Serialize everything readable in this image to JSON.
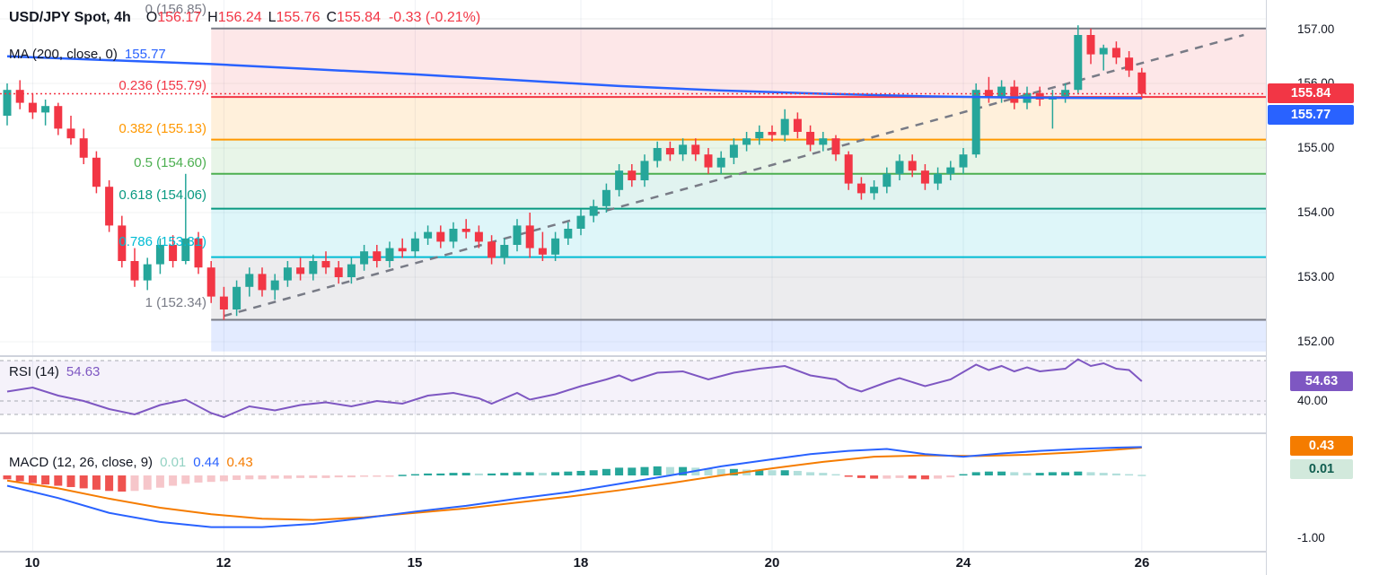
{
  "ui": {
    "header": {
      "symbol": "USD/JPY Spot, 4h",
      "o_label": "O",
      "o": "156.17",
      "h_label": "H",
      "h": "156.24",
      "l_label": "L",
      "l": "155.76",
      "c_label": "C",
      "c": "155.84",
      "change": "-0.33 (-0.21%)"
    },
    "ma": {
      "label": "MA (200, close, 0)",
      "value": "155.77"
    },
    "fib_labels": {
      "f0": "0 (156.85)",
      "f236": "0.236 (155.79)",
      "f382": "0.382 (155.13)",
      "f5": "0.5 (154.60)",
      "f618": "0.618 (154.06)",
      "f786": "0.786 (153.31)",
      "f1": "1 (152.34)"
    },
    "price_axis": {
      "p157": "157.00",
      "p156": "156.00",
      "p155": "155.00",
      "p154": "154.00",
      "p153": "153.00",
      "p152": "152.00",
      "last": "155.84",
      "ma": "155.77"
    },
    "rsi": {
      "label": "RSI (14)",
      "value": "54.63",
      "badge": "54.63",
      "level": "40.00"
    },
    "macd": {
      "label": "MACD (12, 26, close, 9)",
      "hist": "0.01",
      "macd": "0.44",
      "signal": "0.43",
      "badge_signal": "0.43",
      "badge_hist": "0.01",
      "level": "-1.00"
    },
    "dates": {
      "d10": "10",
      "d12": "12",
      "d15": "15",
      "d18": "18",
      "d20": "20",
      "d24": "24",
      "d26": "26"
    }
  },
  "chart_data": {
    "type": "candlestick",
    "symbol": "USD/JPY Spot",
    "timeframe": "4h",
    "last": {
      "open": 156.17,
      "high": 156.24,
      "low": 155.76,
      "close": 155.84,
      "change": -0.33,
      "change_pct": -0.21
    },
    "colors": {
      "up": "#26a69a",
      "down": "#f23645",
      "ma": "#2962ff",
      "trend": "#787b86",
      "price_line": "#f23645",
      "rsi": "#7e57c2",
      "macd_line": "#2962ff",
      "signal_line": "#f57c00",
      "hist_up": "#26a69a",
      "hist_up_light": "#b2dfdb",
      "hist_down": "#ef5350",
      "hist_down_light": "#f6c6ca"
    },
    "price_axis": {
      "min": 151.8,
      "max": 157.15,
      "ticks": [
        157,
        156,
        155,
        154,
        153,
        152
      ]
    },
    "x_axis": {
      "date_ticks": [
        {
          "label": "10",
          "index": 2
        },
        {
          "label": "12",
          "index": 17
        },
        {
          "label": "15",
          "index": 32
        },
        {
          "label": "18",
          "index": 45
        },
        {
          "label": "20",
          "index": 60
        },
        {
          "label": "24",
          "index": 75
        },
        {
          "label": "26",
          "index": 89
        }
      ]
    },
    "fib": {
      "x_start_index": 16,
      "levels": [
        {
          "label": "0 (156.85)",
          "value": 0,
          "price": 156.85,
          "color": "#787b86"
        },
        {
          "label": "0.236 (155.79)",
          "value": 0.236,
          "price": 155.79,
          "color": "#f23645"
        },
        {
          "label": "0.382 (155.13)",
          "value": 0.382,
          "price": 155.13,
          "color": "#ff9800"
        },
        {
          "label": "0.5 (154.60)",
          "value": 0.5,
          "price": 154.6,
          "color": "#4caf50"
        },
        {
          "label": "0.618 (154.06)",
          "value": 0.618,
          "price": 154.06,
          "color": "#089981"
        },
        {
          "label": "0.786 (153.31)",
          "value": 0.786,
          "price": 153.31,
          "color": "#00bcd4"
        },
        {
          "label": "1 (152.34)",
          "value": 1,
          "price": 152.34,
          "color": "#787b86"
        }
      ],
      "zones": [
        {
          "from": 156.85,
          "to": 155.79,
          "color": "rgba(242,54,69,0.12)"
        },
        {
          "from": 155.79,
          "to": 155.13,
          "color": "rgba(255,152,0,0.14)"
        },
        {
          "from": 155.13,
          "to": 154.6,
          "color": "rgba(76,175,80,0.13)"
        },
        {
          "from": 154.6,
          "to": 154.06,
          "color": "rgba(8,153,129,0.12)"
        },
        {
          "from": 154.06,
          "to": 153.31,
          "color": "rgba(0,188,212,0.13)"
        },
        {
          "from": 153.31,
          "to": 152.34,
          "color": "rgba(120,123,134,0.14)"
        },
        {
          "from": 152.34,
          "to": 151.85,
          "color": "rgba(41,98,255,0.13)"
        }
      ]
    },
    "price_line": {
      "price": 155.84,
      "style": "dotted"
    },
    "trendline": {
      "style": "dashed",
      "from": [
        17,
        152.4
      ],
      "to": [
        97,
        156.75
      ]
    },
    "ma200": {
      "label": "MA (200, close, 0)",
      "value": 155.77,
      "points": [
        [
          0,
          156.42
        ],
        [
          8,
          156.36
        ],
        [
          16,
          156.3
        ],
        [
          24,
          156.22
        ],
        [
          32,
          156.14
        ],
        [
          40,
          156.05
        ],
        [
          48,
          155.96
        ],
        [
          56,
          155.89
        ],
        [
          64,
          155.84
        ],
        [
          72,
          155.8
        ],
        [
          80,
          155.78
        ],
        [
          89,
          155.77
        ]
      ]
    },
    "candles": [
      [
        155.5,
        156.0,
        155.35,
        155.9
      ],
      [
        155.9,
        156.05,
        155.6,
        155.7
      ],
      [
        155.7,
        155.85,
        155.45,
        155.55
      ],
      [
        155.55,
        155.75,
        155.35,
        155.65
      ],
      [
        155.65,
        155.7,
        155.2,
        155.3
      ],
      [
        155.3,
        155.5,
        155.05,
        155.15
      ],
      [
        155.15,
        155.3,
        154.75,
        154.85
      ],
      [
        154.85,
        154.95,
        154.3,
        154.4
      ],
      [
        154.4,
        154.5,
        153.7,
        153.8
      ],
      [
        153.8,
        153.95,
        153.15,
        153.25
      ],
      [
        153.25,
        153.45,
        152.85,
        152.95
      ],
      [
        152.95,
        153.3,
        152.8,
        153.2
      ],
      [
        153.2,
        153.6,
        153.05,
        153.5
      ],
      [
        153.5,
        153.65,
        153.15,
        153.25
      ],
      [
        153.25,
        154.6,
        153.2,
        153.6
      ],
      [
        153.6,
        153.7,
        153.05,
        153.15
      ],
      [
        153.15,
        153.25,
        152.6,
        152.7
      ],
      [
        152.7,
        152.85,
        152.34,
        152.5
      ],
      [
        152.5,
        152.95,
        152.4,
        152.85
      ],
      [
        152.85,
        153.15,
        152.7,
        153.05
      ],
      [
        153.05,
        153.15,
        152.7,
        152.8
      ],
      [
        152.8,
        153.05,
        152.65,
        152.95
      ],
      [
        152.95,
        153.25,
        152.85,
        153.15
      ],
      [
        153.15,
        153.3,
        152.95,
        153.05
      ],
      [
        153.05,
        153.35,
        152.95,
        153.25
      ],
      [
        153.25,
        153.4,
        153.05,
        153.15
      ],
      [
        153.15,
        153.25,
        152.9,
        153.0
      ],
      [
        153.0,
        153.3,
        152.9,
        153.2
      ],
      [
        153.2,
        153.5,
        153.1,
        153.4
      ],
      [
        153.4,
        153.5,
        153.15,
        153.25
      ],
      [
        153.25,
        153.55,
        153.15,
        153.45
      ],
      [
        153.45,
        153.6,
        153.3,
        153.4
      ],
      [
        153.4,
        153.7,
        153.3,
        153.6
      ],
      [
        153.6,
        153.8,
        153.5,
        153.7
      ],
      [
        153.7,
        153.8,
        153.45,
        153.55
      ],
      [
        153.55,
        153.85,
        153.45,
        153.75
      ],
      [
        153.75,
        153.9,
        153.6,
        153.7
      ],
      [
        153.7,
        153.8,
        153.45,
        153.55
      ],
      [
        153.55,
        153.65,
        153.2,
        153.3
      ],
      [
        153.3,
        153.6,
        153.2,
        153.5
      ],
      [
        153.5,
        153.9,
        153.4,
        153.8
      ],
      [
        153.8,
        154.0,
        153.3,
        153.45
      ],
      [
        153.45,
        153.7,
        153.25,
        153.35
      ],
      [
        153.35,
        153.7,
        153.25,
        153.6
      ],
      [
        153.6,
        153.85,
        153.5,
        153.75
      ],
      [
        153.75,
        154.05,
        153.65,
        153.95
      ],
      [
        153.95,
        154.2,
        153.85,
        154.1
      ],
      [
        154.1,
        154.45,
        154.0,
        154.35
      ],
      [
        154.35,
        154.75,
        154.25,
        154.65
      ],
      [
        154.65,
        154.75,
        154.4,
        154.5
      ],
      [
        154.5,
        154.9,
        154.4,
        154.8
      ],
      [
        154.8,
        155.1,
        154.7,
        155.0
      ],
      [
        155.0,
        155.1,
        154.8,
        154.9
      ],
      [
        154.9,
        155.15,
        154.8,
        155.05
      ],
      [
        155.05,
        155.15,
        154.8,
        154.9
      ],
      [
        154.9,
        155.0,
        154.6,
        154.7
      ],
      [
        154.7,
        154.95,
        154.6,
        154.85
      ],
      [
        154.85,
        155.15,
        154.75,
        155.05
      ],
      [
        155.05,
        155.25,
        154.95,
        155.15
      ],
      [
        155.15,
        155.35,
        155.05,
        155.25
      ],
      [
        155.25,
        155.35,
        155.1,
        155.2
      ],
      [
        155.2,
        155.6,
        155.1,
        155.45
      ],
      [
        155.45,
        155.55,
        155.15,
        155.25
      ],
      [
        155.25,
        155.35,
        154.95,
        155.05
      ],
      [
        155.05,
        155.25,
        154.95,
        155.15
      ],
      [
        155.15,
        155.2,
        154.8,
        154.9
      ],
      [
        154.9,
        154.95,
        154.35,
        154.45
      ],
      [
        154.45,
        154.55,
        154.2,
        154.3
      ],
      [
        154.3,
        154.5,
        154.2,
        154.4
      ],
      [
        154.4,
        154.7,
        154.3,
        154.6
      ],
      [
        154.6,
        154.9,
        154.5,
        154.8
      ],
      [
        154.8,
        154.9,
        154.55,
        154.65
      ],
      [
        154.65,
        154.75,
        154.35,
        154.45
      ],
      [
        154.45,
        154.7,
        154.35,
        154.6
      ],
      [
        154.6,
        154.8,
        154.5,
        154.7
      ],
      [
        154.7,
        155.0,
        154.6,
        154.9
      ],
      [
        154.9,
        156.0,
        154.85,
        155.9
      ],
      [
        155.9,
        156.1,
        155.7,
        155.8
      ],
      [
        155.8,
        156.05,
        155.7,
        155.95
      ],
      [
        155.95,
        156.05,
        155.6,
        155.7
      ],
      [
        155.7,
        155.95,
        155.6,
        155.85
      ],
      [
        155.85,
        155.95,
        155.65,
        155.75
      ],
      [
        155.75,
        155.9,
        155.3,
        155.8
      ],
      [
        155.8,
        156.0,
        155.7,
        155.9
      ],
      [
        155.9,
        156.9,
        155.85,
        156.75
      ],
      [
        156.75,
        156.85,
        156.3,
        156.45
      ],
      [
        156.45,
        156.6,
        156.2,
        156.55
      ],
      [
        156.55,
        156.65,
        156.3,
        156.4
      ],
      [
        156.4,
        156.5,
        156.1,
        156.2
      ],
      [
        156.17,
        156.24,
        155.76,
        155.84
      ]
    ],
    "rsi": {
      "label": "RSI (14)",
      "value": 54.63,
      "levels": [
        70,
        40,
        30
      ],
      "points": [
        [
          0,
          47
        ],
        [
          2,
          50
        ],
        [
          4,
          44
        ],
        [
          6,
          40
        ],
        [
          8,
          34
        ],
        [
          10,
          30
        ],
        [
          12,
          37
        ],
        [
          14,
          41
        ],
        [
          16,
          31
        ],
        [
          17,
          28
        ],
        [
          19,
          36
        ],
        [
          21,
          33
        ],
        [
          23,
          37
        ],
        [
          25,
          39
        ],
        [
          27,
          36
        ],
        [
          29,
          40
        ],
        [
          31,
          38
        ],
        [
          33,
          44
        ],
        [
          35,
          46
        ],
        [
          37,
          42
        ],
        [
          38,
          38
        ],
        [
          40,
          46
        ],
        [
          41,
          41
        ],
        [
          43,
          45
        ],
        [
          45,
          51
        ],
        [
          47,
          56
        ],
        [
          48,
          59
        ],
        [
          49,
          55
        ],
        [
          51,
          61
        ],
        [
          53,
          62
        ],
        [
          55,
          56
        ],
        [
          57,
          61
        ],
        [
          59,
          64
        ],
        [
          61,
          66
        ],
        [
          63,
          59
        ],
        [
          65,
          56
        ],
        [
          66,
          50
        ],
        [
          67,
          47
        ],
        [
          69,
          54
        ],
        [
          70,
          57
        ],
        [
          72,
          51
        ],
        [
          74,
          56
        ],
        [
          76,
          67
        ],
        [
          77,
          63
        ],
        [
          78,
          66
        ],
        [
          79,
          62
        ],
        [
          80,
          65
        ],
        [
          81,
          62
        ],
        [
          83,
          64
        ],
        [
          84,
          71
        ],
        [
          85,
          66
        ],
        [
          86,
          68
        ],
        [
          87,
          64
        ],
        [
          88,
          63
        ],
        [
          89,
          54.63
        ]
      ]
    },
    "macd": {
      "label": "MACD (12, 26, close, 9)",
      "hist_value": 0.01,
      "macd_value": 0.44,
      "signal_value": 0.43,
      "axis_min_label": -1.0,
      "macd_points": [
        [
          0,
          -0.16
        ],
        [
          4,
          -0.35
        ],
        [
          8,
          -0.58
        ],
        [
          12,
          -0.72
        ],
        [
          16,
          -0.8
        ],
        [
          20,
          -0.8
        ],
        [
          24,
          -0.75
        ],
        [
          28,
          -0.66
        ],
        [
          32,
          -0.56
        ],
        [
          36,
          -0.47
        ],
        [
          40,
          -0.36
        ],
        [
          44,
          -0.26
        ],
        [
          48,
          -0.13
        ],
        [
          52,
          0.0
        ],
        [
          56,
          0.14
        ],
        [
          60,
          0.25
        ],
        [
          63,
          0.33
        ],
        [
          66,
          0.38
        ],
        [
          69,
          0.41
        ],
        [
          72,
          0.33
        ],
        [
          75,
          0.29
        ],
        [
          78,
          0.34
        ],
        [
          81,
          0.38
        ],
        [
          84,
          0.41
        ],
        [
          87,
          0.43
        ],
        [
          89,
          0.44
        ]
      ],
      "signal_points": [
        [
          0,
          -0.08
        ],
        [
          4,
          -0.2
        ],
        [
          8,
          -0.36
        ],
        [
          12,
          -0.5
        ],
        [
          16,
          -0.6
        ],
        [
          20,
          -0.67
        ],
        [
          24,
          -0.69
        ],
        [
          28,
          -0.65
        ],
        [
          32,
          -0.58
        ],
        [
          36,
          -0.51
        ],
        [
          40,
          -0.42
        ],
        [
          44,
          -0.33
        ],
        [
          48,
          -0.23
        ],
        [
          52,
          -0.12
        ],
        [
          56,
          0.0
        ],
        [
          60,
          0.11
        ],
        [
          64,
          0.21
        ],
        [
          68,
          0.29
        ],
        [
          72,
          0.31
        ],
        [
          76,
          0.3
        ],
        [
          80,
          0.32
        ],
        [
          84,
          0.36
        ],
        [
          87,
          0.4
        ],
        [
          89,
          0.43
        ]
      ],
      "hist": [
        -0.06,
        -0.09,
        -0.12,
        -0.14,
        -0.16,
        -0.18,
        -0.2,
        -0.22,
        -0.24,
        -0.25,
        -0.24,
        -0.22,
        -0.19,
        -0.16,
        -0.13,
        -0.11,
        -0.1,
        -0.09,
        -0.07,
        -0.06,
        -0.06,
        -0.05,
        -0.05,
        -0.04,
        -0.04,
        -0.04,
        -0.03,
        -0.03,
        -0.02,
        -0.02,
        -0.01,
        0.01,
        0.02,
        0.03,
        0.03,
        0.04,
        0.04,
        0.03,
        0.03,
        0.04,
        0.05,
        0.05,
        0.04,
        0.05,
        0.06,
        0.07,
        0.08,
        0.1,
        0.12,
        0.12,
        0.13,
        0.14,
        0.13,
        0.13,
        0.12,
        0.11,
        0.1,
        0.1,
        0.09,
        0.09,
        0.08,
        0.08,
        0.07,
        0.05,
        0.04,
        0.02,
        -0.02,
        -0.04,
        -0.05,
        -0.05,
        -0.04,
        -0.05,
        -0.06,
        -0.05,
        -0.03,
        0.02,
        0.05,
        0.06,
        0.06,
        0.05,
        0.04,
        0.04,
        0.05,
        0.05,
        0.06,
        0.05,
        0.04,
        0.03,
        0.02,
        0.01
      ]
    }
  }
}
